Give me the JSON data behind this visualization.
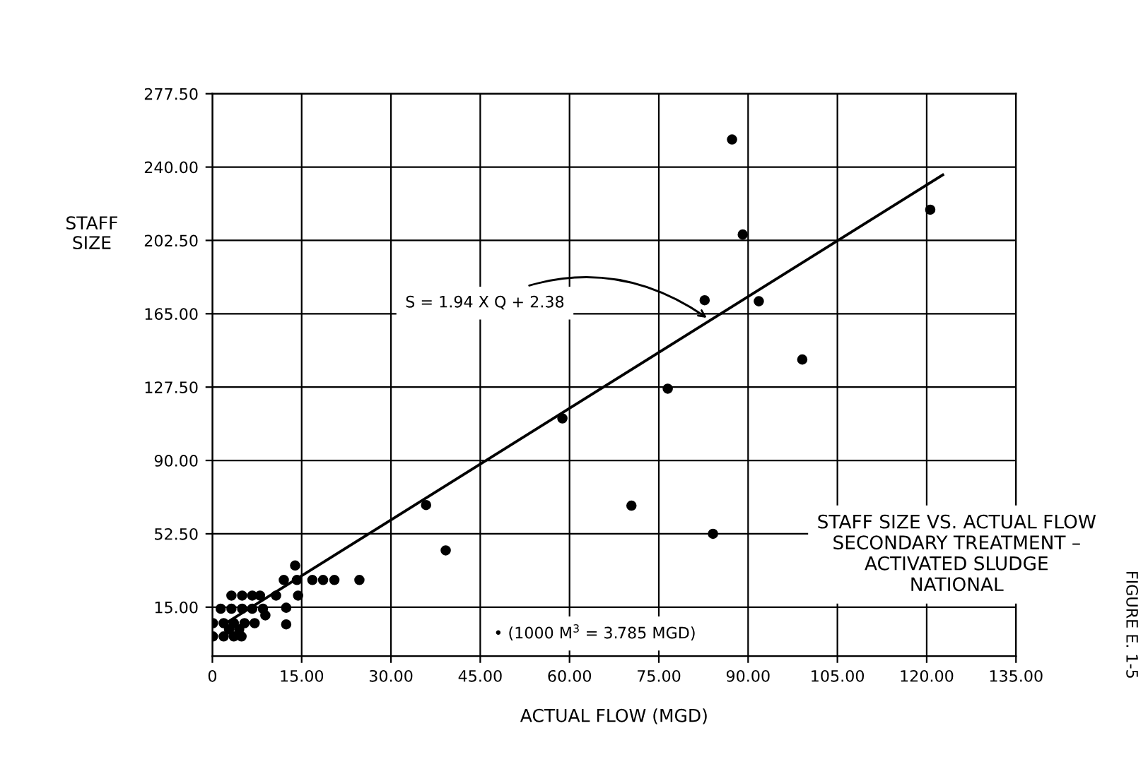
{
  "chart_data": {
    "type": "scatter",
    "title": "STAFF SIZE VS. ACTUAL FLOW\nSECONDARY TREATMENT –\nACTIVATED SLUDGE\nNATIONAL",
    "xlabel": "ACTUAL FLOW (MGD)",
    "ylabel": "STAFF\nSIZE",
    "xlim": [
      0,
      135
    ],
    "ylim": [
      -10,
      277.5
    ],
    "xticks": [
      {
        "value": 0,
        "label": "0"
      },
      {
        "value": 15,
        "label": "15.00"
      },
      {
        "value": 30,
        "label": "30.00"
      },
      {
        "value": 45,
        "label": "45.00"
      },
      {
        "value": 60,
        "label": "60.00"
      },
      {
        "value": 75,
        "label": "75.00"
      },
      {
        "value": 90,
        "label": "90.00"
      },
      {
        "value": 105,
        "label": "105.00"
      },
      {
        "value": 120,
        "label": "120.00"
      },
      {
        "value": 135,
        "label": "135.00"
      }
    ],
    "yticks": [
      {
        "value": 15,
        "label": "15.00"
      },
      {
        "value": 52.5,
        "label": "52.50"
      },
      {
        "value": 90,
        "label": "90.00"
      },
      {
        "value": 127.5,
        "label": "127.50"
      },
      {
        "value": 165,
        "label": "165.00"
      },
      {
        "value": 202.5,
        "label": "202.50"
      },
      {
        "value": 240,
        "label": "240.00"
      },
      {
        "value": 277.5,
        "label": "277.50"
      }
    ],
    "grid": true,
    "marker": "circle",
    "series": [
      {
        "color": "#000000",
        "x": [
          87.3,
          120.6,
          89.1,
          82.7,
          91.8,
          99.1,
          76.5,
          58.8,
          35.9,
          39.2,
          70.4,
          84.1,
          13.9,
          12.0,
          14.2,
          16.8,
          18.6,
          20.5,
          24.7,
          3.2,
          5.0,
          6.7,
          8.0,
          10.7,
          14.4,
          1.4,
          3.2,
          5.0,
          6.7,
          8.5,
          12.4,
          8.9,
          0.1,
          1.9,
          3.6,
          5.4,
          7.1,
          12.4,
          2.8,
          4.5,
          0.1,
          1.9,
          3.6,
          4.9
        ],
        "values": [
          254.1,
          218.2,
          205.5,
          171.9,
          171.4,
          141.6,
          126.7,
          111.5,
          67.2,
          44.0,
          66.9,
          52.5,
          36.3,
          28.9,
          28.9,
          28.9,
          28.9,
          28.9,
          28.9,
          20.9,
          20.9,
          20.9,
          20.9,
          20.9,
          20.9,
          14.2,
          14.2,
          14.2,
          14.2,
          14.2,
          14.7,
          10.8,
          6.8,
          6.8,
          6.8,
          6.8,
          6.8,
          6.2,
          3.6,
          3.6,
          0,
          0,
          0,
          0
        ]
      },
      {
        "type": "line",
        "color": "#000000",
        "marker": "none",
        "x": [
          2,
          122.7
        ],
        "values": [
          6.3,
          236
        ]
      }
    ],
    "annotations": [
      {
        "text": "S = 1.94 X Q + 2.38",
        "x": 83.6,
        "y": 161.8
      },
      "• (1000 M$^{3}$ = 3.785 MGD)",
      "FIGURE E. 1-5"
    ]
  }
}
